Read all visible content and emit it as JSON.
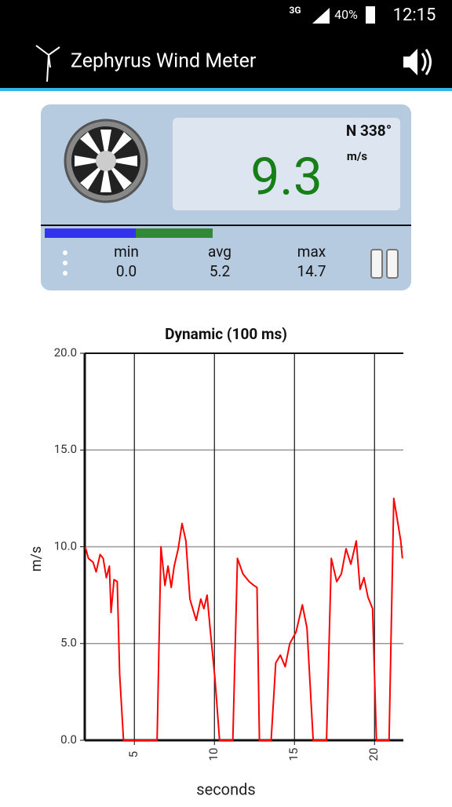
{
  "status_bar": {
    "network": "3G",
    "battery": "40%",
    "time": "12:15"
  },
  "app_bar": {
    "title": "Zephyrus Wind Meter"
  },
  "meter": {
    "direction": "N 338°",
    "unit": "m/s",
    "speed": "9.3",
    "stats": [
      {
        "label": "min",
        "value": "0.0"
      },
      {
        "label": "avg",
        "value": "5.2"
      },
      {
        "label": "max",
        "value": "14.7"
      }
    ]
  },
  "chart_data": {
    "type": "line",
    "title": "Dynamic (100 ms)",
    "x_label": "seconds",
    "y_label": "m/s",
    "color": "#ff0000",
    "grid": true,
    "x": [
      1.93,
      2.13,
      2.42,
      2.61,
      2.86,
      3.05,
      3.25,
      3.44,
      3.54,
      3.73,
      3.93,
      4.08,
      4.32,
      6.42,
      6.66,
      6.91,
      7.1,
      7.3,
      7.49,
      7.74,
      7.98,
      8.22,
      8.47,
      8.86,
      9.15,
      9.34,
      9.54,
      9.73,
      10.03,
      10.32,
      11.15,
      11.44,
      11.78,
      12.17,
      12.47,
      12.66,
      12.81,
      13.54,
      13.83,
      14.12,
      14.42,
      14.71,
      15.1,
      15.49,
      15.78,
      16.17,
      17.0,
      17.3,
      17.64,
      17.93,
      18.22,
      18.52,
      18.86,
      19.1,
      19.34,
      19.59,
      19.88,
      20.12,
      20.91,
      21.2,
      21.44,
      21.64,
      21.74
    ],
    "values": [
      10.0,
      9.4,
      9.2,
      8.7,
      9.6,
      9.4,
      8.4,
      9.0,
      6.6,
      8.3,
      8.2,
      3.4,
      0,
      0,
      10.0,
      8.0,
      9.0,
      7.9,
      9.0,
      9.9,
      11.2,
      10.3,
      7.3,
      6.2,
      7.3,
      6.8,
      7.5,
      5.8,
      3.2,
      0,
      0,
      9.4,
      8.6,
      8.2,
      8.0,
      7.9,
      0,
      0,
      4.0,
      4.4,
      3.8,
      5.0,
      5.6,
      7.0,
      5.8,
      0,
      0,
      9.4,
      8.2,
      8.6,
      9.9,
      9.1,
      10.3,
      7.8,
      8.4,
      7.4,
      6.8,
      0,
      0,
      12.5,
      11.3,
      10.3,
      9.4
    ],
    "xlim": [
      1.9,
      21.8
    ],
    "xticks": [
      5,
      10,
      15,
      20
    ],
    "ylim": [
      0,
      20
    ],
    "yticks": [
      {
        "value": 0,
        "label": "0.0"
      },
      {
        "value": 5,
        "label": "5.0"
      },
      {
        "value": 10,
        "label": "10.0"
      },
      {
        "value": 15,
        "label": "15.0"
      },
      {
        "value": 20,
        "label": "20.0"
      }
    ]
  }
}
